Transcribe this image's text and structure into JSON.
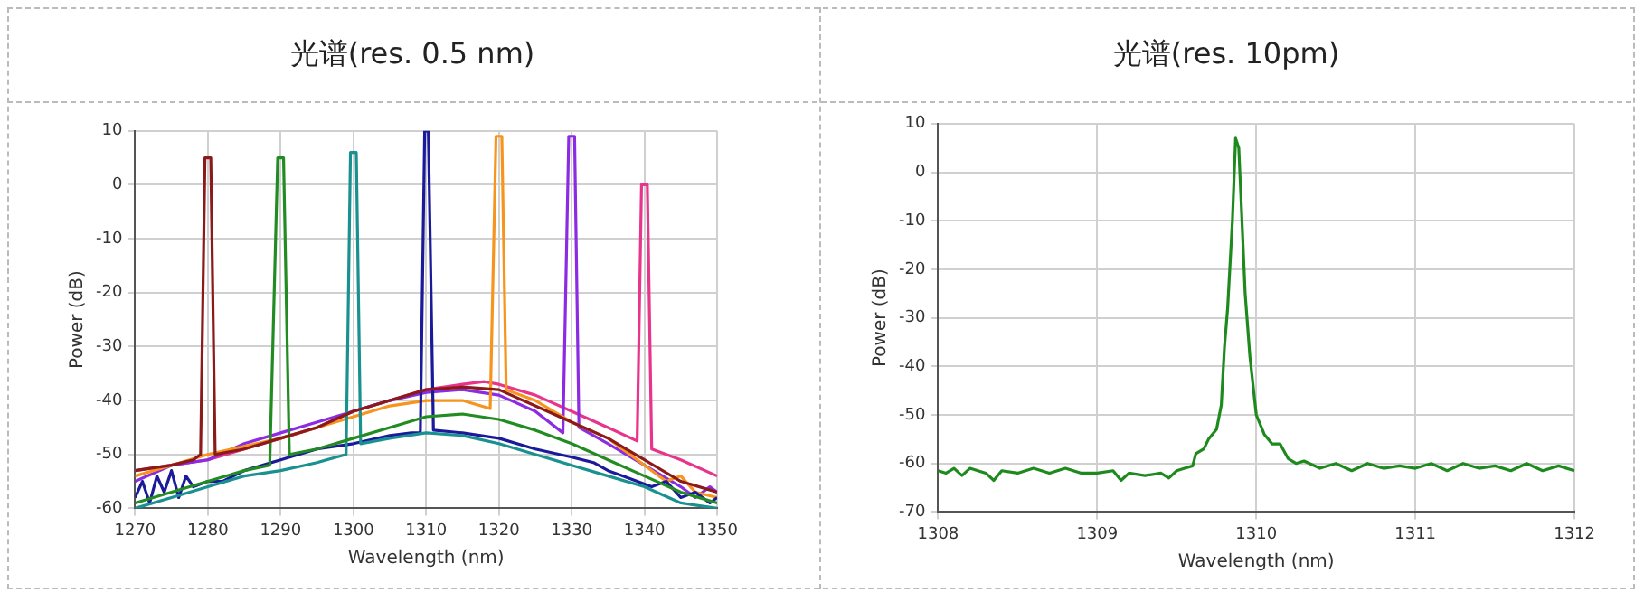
{
  "chart_data": [
    {
      "type": "line",
      "title": "光谱(res. 0.5 nm)",
      "xlabel": "Wavelength (nm)",
      "ylabel": "Power (dB)",
      "xlim": [
        1270,
        1350
      ],
      "xticks": [
        1270,
        1280,
        1290,
        1300,
        1310,
        1320,
        1330,
        1340,
        1350
      ],
      "ylim": [
        -60,
        10
      ],
      "yticks": [
        -60,
        -50,
        -40,
        -30,
        -20,
        -10,
        0,
        10
      ],
      "grid": true,
      "legend": false,
      "marker": "none",
      "line_style": "solid",
      "series": [
        {
          "color": "#8b1a1a",
          "x": [
            1270,
            1275,
            1278,
            1279,
            1279.6,
            1280.4,
            1281,
            1285,
            1290,
            1295,
            1300,
            1305,
            1310,
            1315,
            1320,
            1325,
            1330,
            1335,
            1340,
            1345,
            1350
          ],
          "values": [
            -53,
            -52,
            -51,
            -50,
            5,
            5,
            -50,
            -49,
            -47,
            -45,
            -42,
            -40,
            -38,
            -37.5,
            -38,
            -41,
            -44,
            -47,
            -51,
            -55,
            -57
          ]
        },
        {
          "color": "#228b22",
          "x": [
            1270,
            1275,
            1280,
            1285,
            1288.5,
            1289.6,
            1290.4,
            1291.2,
            1295,
            1300,
            1305,
            1310,
            1315,
            1320,
            1325,
            1330,
            1335,
            1340,
            1345,
            1350
          ],
          "values": [
            -59,
            -57,
            -55,
            -53,
            -52,
            5,
            5,
            -50,
            -49,
            -47,
            -45,
            -43,
            -42.5,
            -43.5,
            -45.5,
            -48,
            -51,
            -54,
            -57,
            -59
          ]
        },
        {
          "color": "#1a9090",
          "x": [
            1270,
            1275,
            1280,
            1285,
            1290,
            1295,
            1299,
            1299.6,
            1300.4,
            1301,
            1305,
            1310,
            1315,
            1320,
            1325,
            1330,
            1335,
            1340,
            1345,
            1350
          ],
          "values": [
            -60,
            -58,
            -56,
            -54,
            -53,
            -51.5,
            -50,
            6,
            6,
            -48,
            -47,
            -46,
            -46.5,
            -48,
            -50,
            -52,
            -54,
            -56,
            -59,
            -60
          ]
        },
        {
          "color": "#1a1a9a",
          "x": [
            1270,
            1271,
            1272,
            1273,
            1274,
            1275,
            1276,
            1277,
            1278,
            1280,
            1282,
            1285,
            1290,
            1295,
            1300,
            1305,
            1308,
            1309.2,
            1309.8,
            1310.3,
            1311,
            1315,
            1320,
            1325,
            1330,
            1333,
            1335,
            1337,
            1339,
            1341,
            1343,
            1345,
            1347,
            1349,
            1350
          ],
          "values": [
            -58,
            -55,
            -59,
            -54,
            -57,
            -53,
            -58,
            -54,
            -56,
            -55,
            -55,
            -53,
            -51,
            -49,
            -48,
            -46.5,
            -46,
            -46,
            10,
            10,
            -45.5,
            -46,
            -47,
            -49,
            -50.5,
            -51.5,
            -53,
            -54,
            -55,
            -56,
            -55,
            -58,
            -57,
            -59,
            -58
          ]
        },
        {
          "color": "#f7941d",
          "x": [
            1270,
            1275,
            1280,
            1285,
            1290,
            1295,
            1300,
            1305,
            1310,
            1315,
            1318.8,
            1319.6,
            1320.4,
            1321,
            1325,
            1330,
            1335,
            1340,
            1343,
            1345,
            1347,
            1350
          ],
          "values": [
            -54,
            -52,
            -50,
            -48.5,
            -47,
            -45,
            -43,
            -41,
            -40,
            -40,
            -41.5,
            9,
            9,
            -38,
            -40,
            -44,
            -47,
            -52,
            -55,
            -54,
            -57,
            -58
          ]
        },
        {
          "color": "#8b2be2",
          "x": [
            1270,
            1275,
            1280,
            1285,
            1290,
            1295,
            1300,
            1305,
            1310,
            1315,
            1320,
            1325,
            1328.8,
            1329.6,
            1330.4,
            1331,
            1335,
            1340,
            1345,
            1347,
            1349,
            1350
          ],
          "values": [
            -55,
            -52,
            -51,
            -48,
            -46,
            -44,
            -42,
            -40,
            -38.5,
            -38,
            -39,
            -42,
            -46,
            9,
            9,
            -45,
            -48,
            -52,
            -56,
            -58,
            -56,
            -57
          ]
        },
        {
          "color": "#e8348c",
          "x": [
            1270,
            1275,
            1280,
            1285,
            1290,
            1295,
            1300,
            1305,
            1310,
            1315,
            1318,
            1320,
            1325,
            1330,
            1335,
            1339,
            1339.6,
            1340.4,
            1341,
            1345,
            1350
          ],
          "values": [
            -53,
            -52,
            -51,
            -49,
            -47,
            -45,
            -42,
            -40,
            -38,
            -37,
            -36.5,
            -37,
            -39,
            -42,
            -45,
            -47.5,
            0,
            0,
            -49,
            -51,
            -54
          ]
        }
      ]
    },
    {
      "type": "line",
      "title": "光谱(res. 10pm)",
      "xlabel": "Wavelength (nm)",
      "ylabel": "Power (dB)",
      "xlim": [
        1308,
        1312
      ],
      "xticks": [
        1308,
        1309,
        1310,
        1311,
        1312
      ],
      "ylim": [
        -70,
        10
      ],
      "yticks": [
        -70,
        -60,
        -50,
        -40,
        -30,
        -20,
        -10,
        0,
        10
      ],
      "grid": true,
      "legend": false,
      "marker": "none",
      "line_style": "solid",
      "series": [
        {
          "color": "#1e8a1e",
          "x": [
            1308,
            1308.05,
            1308.1,
            1308.15,
            1308.2,
            1308.3,
            1308.35,
            1308.4,
            1308.5,
            1308.6,
            1308.7,
            1308.8,
            1308.9,
            1309,
            1309.1,
            1309.15,
            1309.2,
            1309.3,
            1309.4,
            1309.45,
            1309.5,
            1309.55,
            1309.6,
            1309.62,
            1309.67,
            1309.7,
            1309.75,
            1309.78,
            1309.8,
            1309.82,
            1309.85,
            1309.87,
            1309.89,
            1309.91,
            1309.93,
            1309.96,
            1310,
            1310.05,
            1310.1,
            1310.15,
            1310.2,
            1310.25,
            1310.3,
            1310.4,
            1310.5,
            1310.6,
            1310.7,
            1310.8,
            1310.9,
            1311,
            1311.1,
            1311.2,
            1311.3,
            1311.4,
            1311.5,
            1311.6,
            1311.7,
            1311.8,
            1311.9,
            1312
          ],
          "values": [
            -61.5,
            -62,
            -61,
            -62.5,
            -61,
            -62,
            -63.5,
            -61.5,
            -62,
            -61,
            -62,
            -61,
            -62,
            -62,
            -61.5,
            -63.5,
            -62,
            -62.5,
            -62,
            -63,
            -61.5,
            -61,
            -60.5,
            -58,
            -57,
            -55,
            -53,
            -48,
            -36,
            -28,
            -10,
            7,
            5,
            -10,
            -25,
            -38,
            -50,
            -54,
            -56,
            -56,
            -59,
            -60,
            -59.5,
            -61,
            -60,
            -61.5,
            -60,
            -61,
            -60.5,
            -61,
            -60,
            -61.5,
            -60,
            -61,
            -60.5,
            -61.5,
            -60,
            -61.5,
            -60.5,
            -61.5
          ]
        }
      ]
    }
  ]
}
